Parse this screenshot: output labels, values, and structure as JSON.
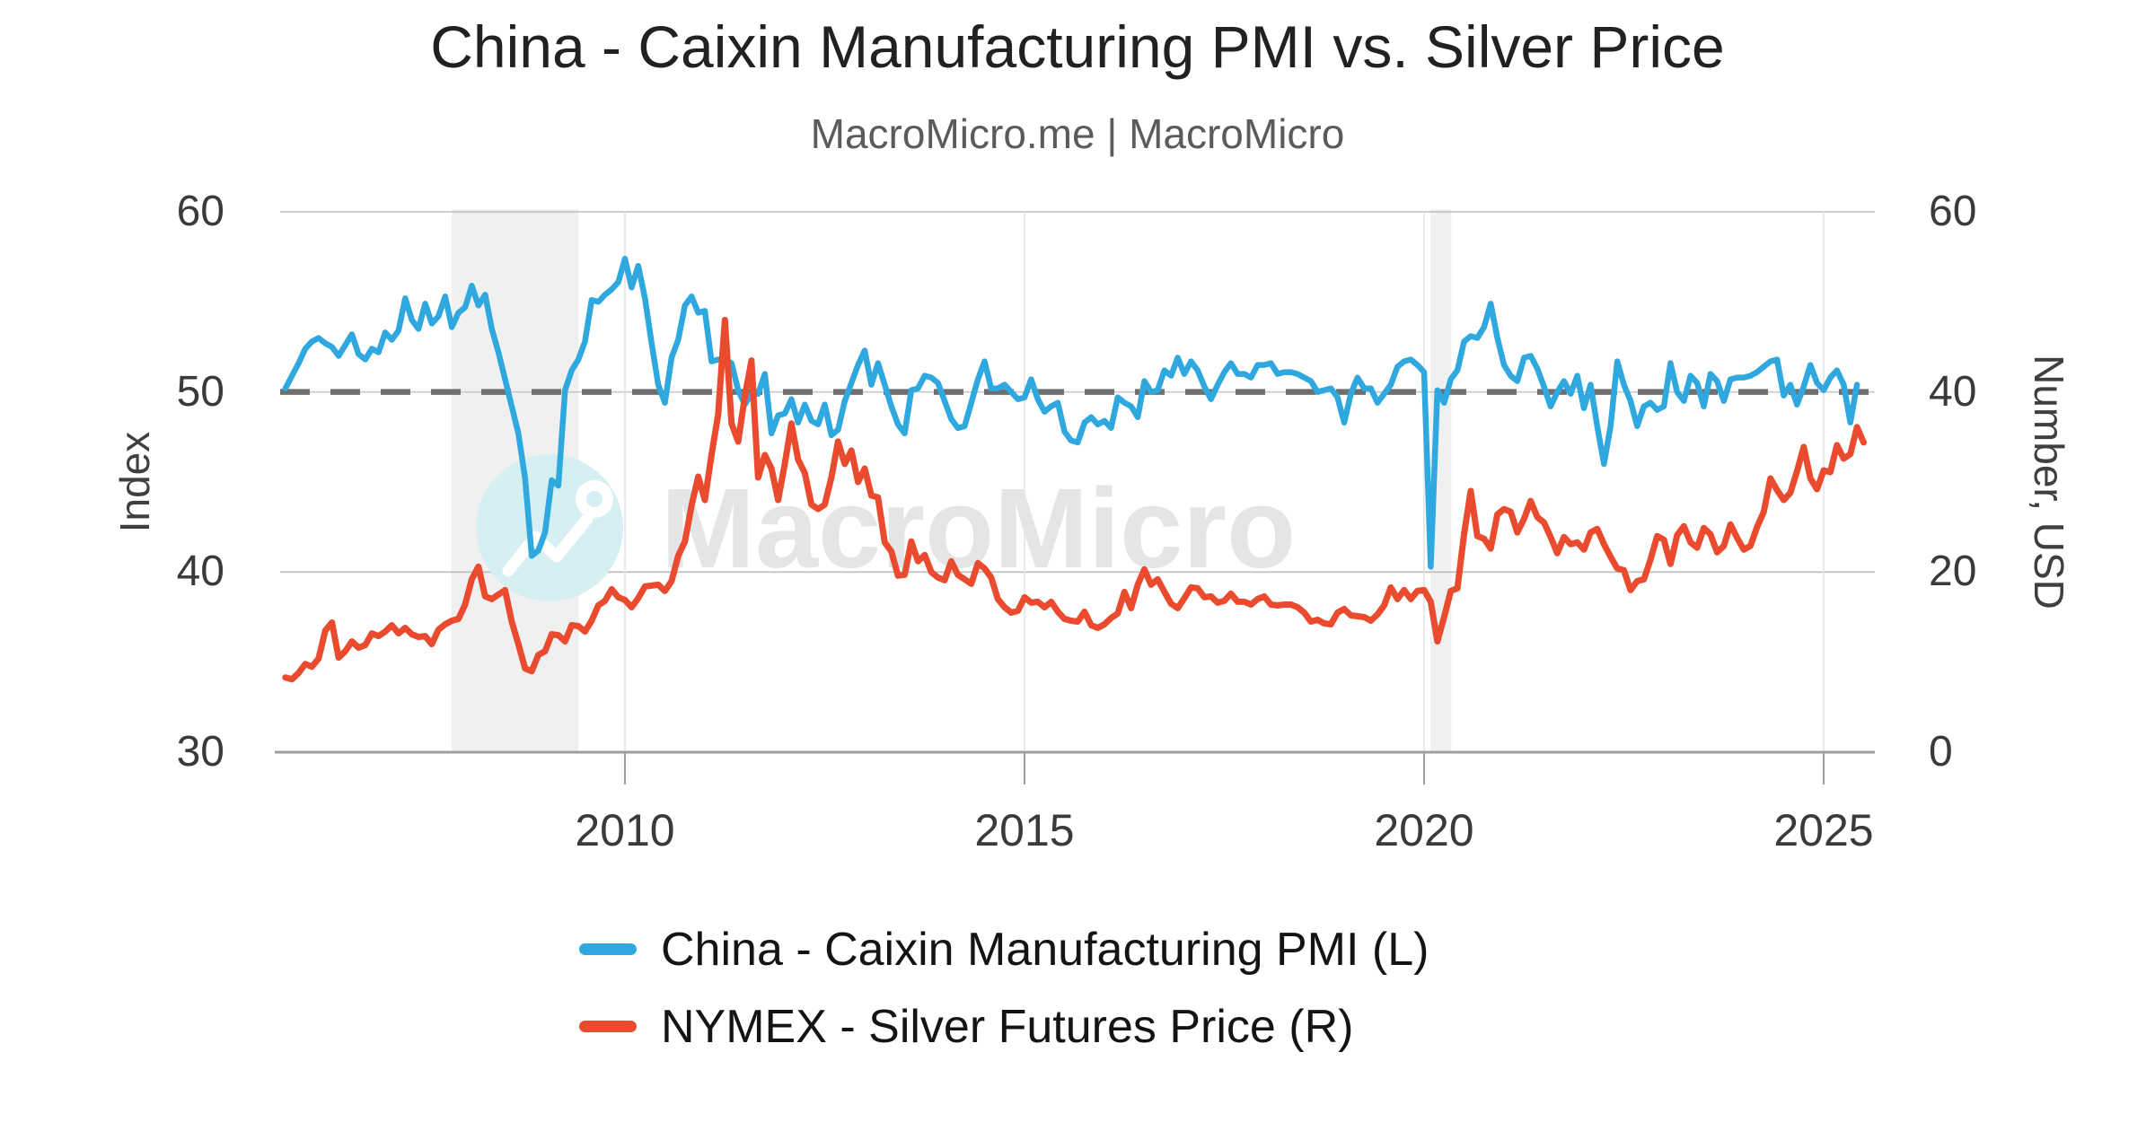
{
  "header": {
    "title": "China - Caixin Manufacturing PMI vs. Silver Price",
    "subtitle": "MacroMicro.me | MacroMicro"
  },
  "watermark": {
    "text": "MacroMicro",
    "logo": "line-chart-circle-icon",
    "circle_color": "#d5eff3",
    "text_color": "#e3e5e6"
  },
  "legend": [
    {
      "label": "China - Caixin Manufacturing PMI (L)",
      "color": "#2fa8df"
    },
    {
      "label": "NYMEX - Silver Futures Price (R)",
      "color": "#ea4a2d"
    }
  ],
  "chart_data": {
    "type": "line",
    "title": "China - Caixin Manufacturing PMI vs. Silver Price",
    "x_axis": {
      "ticks": [
        2010,
        2015,
        2020,
        2025
      ],
      "range": [
        2005.6,
        2025.75
      ],
      "grid": true
    },
    "left_axis": {
      "label": "Index",
      "ticks": [
        60,
        50,
        40,
        30
      ],
      "range": [
        30,
        60
      ],
      "reference_line": 50
    },
    "right_axis": {
      "label": "Number, USD",
      "ticks": [
        60,
        40,
        20,
        0
      ],
      "range": [
        0,
        60
      ]
    },
    "shaded_bands": [
      {
        "from": 2007.83,
        "to": 2009.42
      },
      {
        "from": 2020.08,
        "to": 2020.34
      }
    ],
    "series": [
      {
        "name": "China - Caixin Manufacturing PMI (L)",
        "axis": "left",
        "color": "#2fa8df",
        "start_year": 2005.75,
        "points_per_year": 12,
        "values": [
          50.2,
          50.9,
          51.6,
          52.4,
          52.8,
          53.0,
          52.7,
          52.5,
          52.0,
          52.6,
          53.2,
          52.1,
          51.8,
          52.4,
          52.2,
          53.3,
          52.9,
          53.4,
          55.2,
          54.0,
          53.5,
          54.9,
          53.8,
          54.2,
          55.3,
          53.6,
          54.4,
          54.7,
          55.9,
          54.8,
          55.4,
          53.5,
          52.2,
          50.7,
          49.2,
          47.7,
          45.2,
          40.9,
          41.2,
          42.2,
          45.1,
          44.8,
          50.1,
          51.2,
          51.8,
          52.8,
          55.1,
          55.0,
          55.4,
          55.7,
          56.1,
          57.4,
          55.8,
          57.0,
          55.2,
          52.7,
          50.4,
          49.4,
          51.9,
          52.9,
          54.8,
          55.3,
          54.4,
          54.5,
          51.7,
          51.8,
          51.8,
          51.6,
          50.1,
          49.3,
          49.9,
          49.9,
          51.0,
          47.7,
          48.7,
          48.8,
          49.6,
          48.3,
          49.3,
          48.4,
          48.2,
          49.3,
          47.6,
          47.9,
          49.5,
          50.5,
          51.5,
          52.3,
          50.4,
          51.6,
          50.4,
          49.2,
          48.2,
          47.7,
          50.1,
          50.2,
          50.9,
          50.8,
          50.5,
          49.5,
          48.5,
          48.0,
          48.1,
          49.4,
          50.7,
          51.7,
          50.2,
          50.2,
          50.4,
          50.0,
          49.6,
          49.7,
          50.7,
          49.6,
          48.9,
          49.2,
          49.4,
          47.8,
          47.3,
          47.2,
          48.3,
          48.6,
          48.2,
          48.4,
          48.0,
          49.7,
          49.4,
          49.2,
          48.6,
          50.6,
          50.0,
          50.1,
          51.2,
          50.9,
          51.9,
          51.0,
          51.7,
          51.2,
          50.3,
          49.6,
          50.4,
          51.1,
          51.6,
          51.0,
          51.0,
          50.8,
          51.5,
          51.5,
          51.6,
          51.0,
          51.1,
          51.1,
          51.0,
          50.8,
          50.6,
          50.0,
          50.1,
          50.2,
          49.7,
          48.3,
          49.9,
          50.8,
          50.2,
          50.2,
          49.4,
          49.9,
          50.4,
          51.4,
          51.7,
          51.8,
          51.5,
          51.1,
          40.3,
          50.1,
          49.4,
          50.7,
          51.2,
          52.8,
          53.1,
          53.0,
          53.6,
          54.9,
          53.0,
          51.5,
          50.9,
          50.6,
          51.9,
          52.0,
          51.3,
          50.3,
          49.2,
          50.0,
          50.6,
          49.9,
          50.9,
          49.1,
          50.4,
          48.1,
          46.0,
          48.1,
          51.7,
          50.4,
          49.5,
          48.1,
          49.2,
          49.4,
          49.0,
          49.2,
          51.6,
          50.0,
          49.5,
          50.9,
          50.5,
          49.2,
          51.0,
          50.6,
          49.5,
          50.7,
          50.8,
          50.8,
          50.9,
          51.1,
          51.4,
          51.7,
          51.8,
          49.8,
          50.4,
          49.3,
          50.3,
          51.5,
          50.5,
          50.1,
          50.8,
          51.2,
          50.4,
          48.3,
          50.4
        ]
      },
      {
        "name": "NYMEX - Silver Futures Price (R)",
        "axis": "right",
        "color": "#ea4a2d",
        "start_year": 2005.75,
        "points_per_year": 12,
        "values": [
          8.3,
          8.1,
          8.8,
          9.8,
          9.5,
          10.4,
          13.5,
          14.4,
          10.5,
          11.2,
          12.3,
          11.6,
          11.9,
          13.2,
          12.9,
          13.4,
          14.1,
          13.2,
          13.8,
          13.1,
          12.8,
          12.9,
          12.0,
          13.6,
          14.2,
          14.6,
          14.8,
          16.4,
          19.2,
          20.6,
          17.3,
          17.0,
          17.5,
          18.0,
          14.5,
          12.0,
          9.3,
          9.0,
          10.8,
          11.2,
          13.1,
          13.0,
          12.3,
          14.1,
          14.0,
          13.4,
          14.6,
          16.3,
          16.8,
          18.1,
          17.2,
          16.9,
          16.1,
          17.1,
          18.4,
          18.5,
          18.6,
          17.9,
          19.0,
          21.8,
          23.4,
          27.4,
          30.6,
          28.0,
          33.0,
          37.5,
          48.0,
          36.5,
          34.5,
          39.5,
          43.5,
          30.5,
          33.0,
          31.5,
          28.0,
          32.0,
          36.5,
          32.5,
          31.0,
          27.5,
          27.0,
          27.5,
          30.5,
          34.5,
          32.0,
          33.5,
          30.0,
          31.5,
          28.5,
          28.3,
          23.3,
          22.3,
          19.6,
          19.7,
          23.4,
          21.2,
          21.9,
          20.0,
          19.4,
          19.1,
          21.2,
          19.7,
          19.2,
          18.7,
          21.0,
          20.4,
          19.4,
          17.0,
          16.1,
          15.5,
          15.7,
          17.2,
          16.6,
          16.7,
          16.1,
          16.7,
          15.6,
          14.8,
          14.6,
          14.5,
          15.6,
          14.1,
          13.8,
          14.2,
          14.9,
          15.4,
          17.8,
          16.0,
          18.6,
          20.3,
          18.6,
          19.2,
          17.8,
          16.5,
          16.0,
          17.1,
          18.3,
          18.2,
          17.2,
          17.3,
          16.6,
          16.8,
          17.6,
          16.7,
          16.7,
          16.4,
          17.0,
          17.3,
          16.4,
          16.3,
          16.4,
          16.4,
          16.1,
          15.5,
          14.5,
          14.7,
          14.3,
          14.2,
          15.5,
          15.9,
          15.2,
          15.1,
          15.0,
          14.6,
          15.3,
          16.3,
          18.3,
          17.0,
          18.0,
          17.0,
          17.9,
          18.0,
          16.7,
          12.3,
          15.0,
          17.9,
          18.2,
          24.2,
          29.0,
          24.0,
          23.7,
          22.6,
          26.4,
          27.0,
          26.7,
          24.4,
          25.9,
          27.9,
          26.1,
          25.5,
          23.9,
          22.1,
          23.9,
          23.1,
          23.3,
          22.5,
          24.4,
          24.8,
          23.1,
          21.7,
          20.4,
          20.2,
          18.0,
          19.0,
          19.2,
          21.4,
          24.0,
          23.6,
          20.9,
          24.1,
          25.1,
          23.3,
          22.7,
          24.9,
          24.2,
          22.2,
          22.9,
          25.3,
          23.8,
          22.5,
          22.9,
          25.0,
          26.7,
          30.4,
          29.1,
          28.0,
          28.8,
          31.2,
          33.9,
          30.4,
          29.2,
          31.3,
          31.1,
          34.1,
          32.6,
          33.1,
          36.1,
          34.4
        ]
      }
    ],
    "styles": {
      "band_color": "#f0f0f0",
      "grid_color": "#bdbdbd",
      "year_grid_color": "#e5e5e5",
      "axis_line_color": "#9e9e9e",
      "reference_dash_color": "#6f6f6f"
    }
  }
}
